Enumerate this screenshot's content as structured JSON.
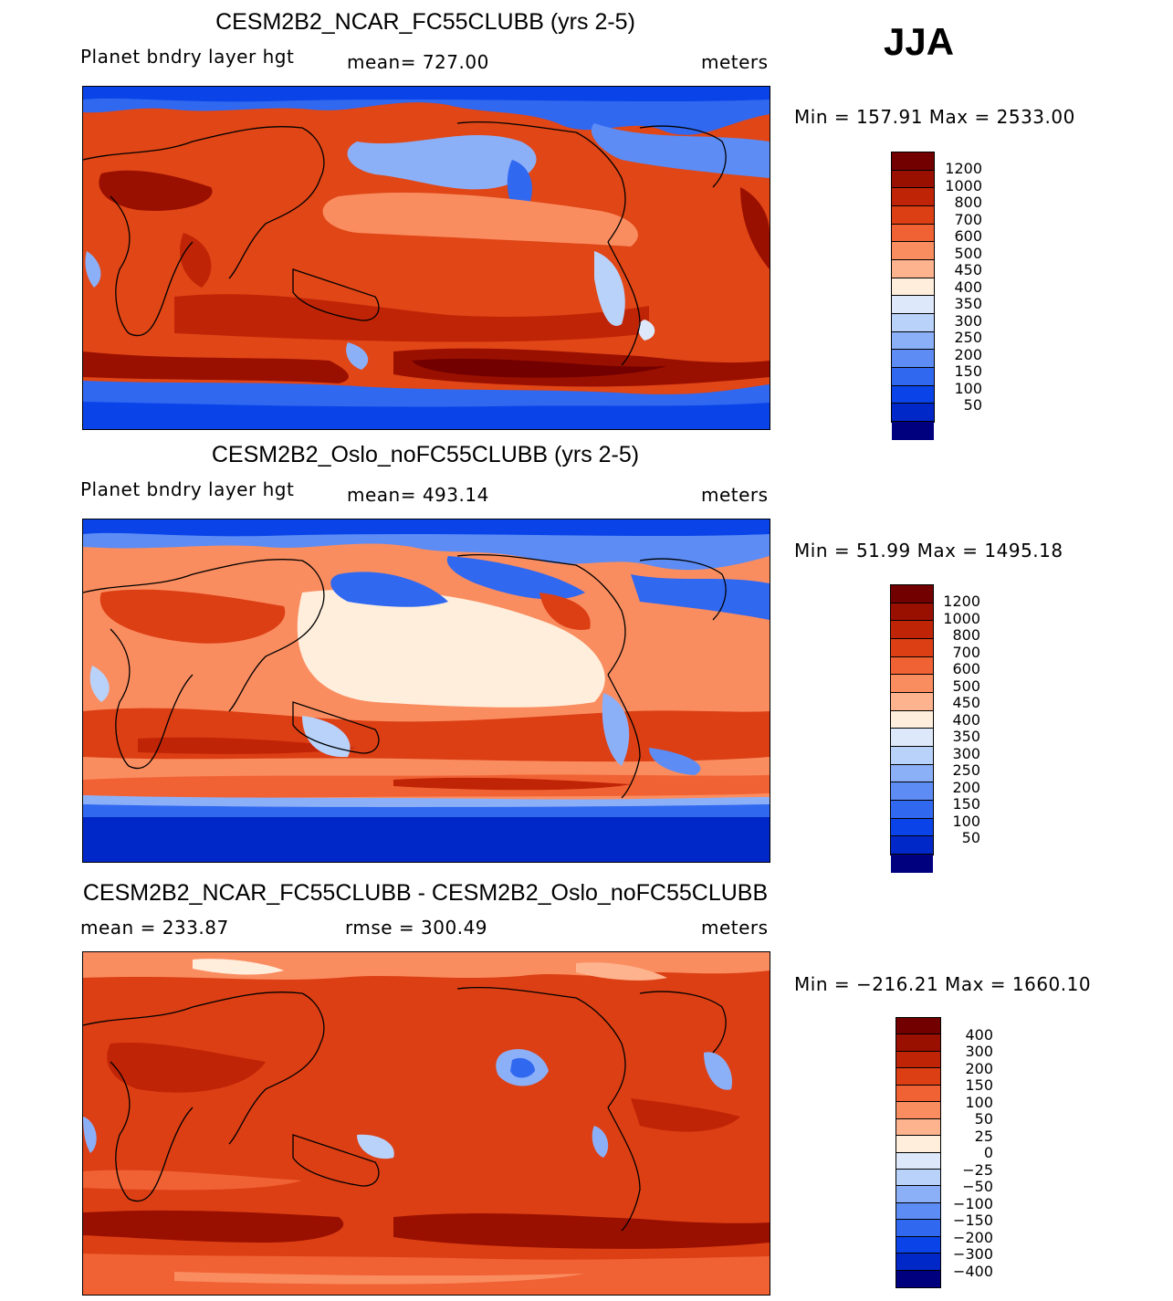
{
  "season": "JJA",
  "colors": {
    "scale": [
      "#00007f",
      "#0010a0",
      "#0028c8",
      "#0a44e8",
      "#3068f0",
      "#5c8cf4",
      "#8cb0f8",
      "#b8d2fa",
      "#dde9fa",
      "#ffeedc",
      "#ffd3b8",
      "#fdb38e",
      "#fa8d60",
      "#f06234",
      "#dc3f14",
      "#c02406",
      "#9a1000",
      "#720000"
    ]
  },
  "panels": [
    {
      "title": "CESM2B2_NCAR_FC55CLUBB (yrs 2-5)",
      "left_label": "Planet bndry layer hgt",
      "center_label": "mean= 727.00",
      "right_label": "meters",
      "minmax": "Min = 157.91 Max = 2533.00",
      "levels": [
        "1200",
        "1000",
        "800",
        "700",
        "600",
        "500",
        "450",
        "400",
        "350",
        "300",
        "250",
        "200",
        "150",
        "100",
        "50"
      ]
    },
    {
      "title": "CESM2B2_Oslo_noFC55CLUBB (yrs 2-5)",
      "left_label": "Planet bndry layer hgt",
      "center_label": "mean= 493.14",
      "right_label": "meters",
      "minmax": "Min =  51.99 Max = 1495.18",
      "levels": [
        "1200",
        "1000",
        "800",
        "700",
        "600",
        "500",
        "450",
        "400",
        "350",
        "300",
        "250",
        "200",
        "150",
        "100",
        "50"
      ]
    },
    {
      "title": "CESM2B2_NCAR_FC55CLUBB - CESM2B2_Oslo_noFC55CLUBB",
      "left_label": "mean = 233.87",
      "center_label": "rmse = 300.49",
      "right_label": "meters",
      "minmax": "Min = −216.21 Max = 1660.10",
      "levels": [
        "400",
        "300",
        "200",
        "150",
        "100",
        "50",
        "25",
        "0",
        "−25",
        "−50",
        "−100",
        "−150",
        "−200",
        "−300",
        "−400"
      ]
    }
  ]
}
